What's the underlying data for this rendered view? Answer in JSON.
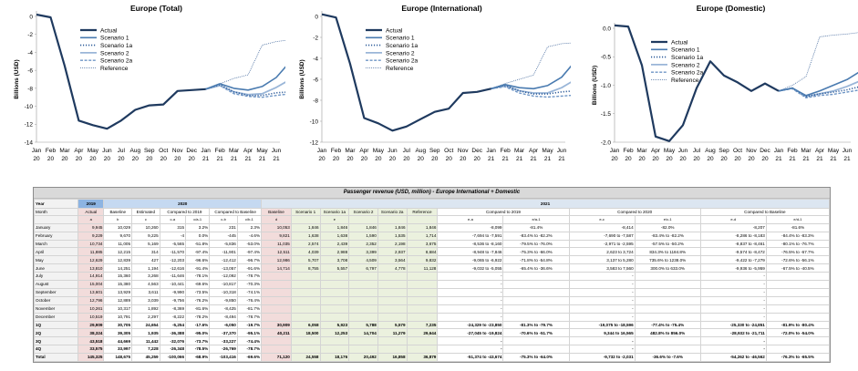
{
  "colors": {
    "actual": "#1f3a5f",
    "s1": "#4a7bb0",
    "s1a": "#2e5c9a",
    "s2": "#9ab6d8",
    "s2a": "#6f96c6",
    "ref": "#4a6ea0",
    "y2019": "#8db4e2",
    "y2020": "#c5d9f1",
    "y2021": "#dce6f1",
    "pink": "#f2dcdb",
    "green": "#ebf1de",
    "shade": "#f2f2f2"
  },
  "chart_data": [
    {
      "type": "line",
      "title": "Europe (Total)",
      "ylabel": "Billions (USD)",
      "ylim": [
        -14,
        0
      ],
      "yticks": [
        0,
        -2,
        -4,
        -6,
        -8,
        -10,
        -12,
        -14
      ],
      "x_tick_top": [
        "Jan",
        "Feb",
        "Mar",
        "Apr",
        "May",
        "Jun",
        "Jul",
        "Aug",
        "Sep",
        "Oct",
        "Nov",
        "Dec",
        "Jan",
        "Feb",
        "Mar",
        "Apr",
        "May",
        "Jun"
      ],
      "x_tick_bottom": [
        "20",
        "20",
        "20",
        "20",
        "20",
        "20",
        "20",
        "20",
        "20",
        "20",
        "20",
        "20",
        "21",
        "21",
        "21",
        "21",
        "21",
        "21"
      ],
      "series": [
        {
          "name": "Actual",
          "style": "actual",
          "start": 0,
          "values": [
            0.2,
            -0.1,
            -5.5,
            -11.6,
            -12.1,
            -12.5,
            -11.6,
            -10.4,
            -9.9,
            -9.8,
            -8.3,
            -8.2,
            -8.1
          ]
        },
        {
          "name": "Scenario 1",
          "style": "s1",
          "start": 12,
          "values": [
            -8.1,
            -7.5,
            -8.0,
            -8.2,
            -7.8,
            -6.8,
            -5.0
          ]
        },
        {
          "name": "Scenario 1a",
          "style": "s1a",
          "start": 12,
          "values": [
            -8.1,
            -7.6,
            -8.4,
            -8.8,
            -8.8,
            -8.5,
            -8.4
          ]
        },
        {
          "name": "Scenario 2",
          "style": "s2",
          "start": 12,
          "values": [
            -8.1,
            -7.7,
            -8.4,
            -8.7,
            -8.6,
            -7.9,
            -7.0
          ]
        },
        {
          "name": "Scenario 2a",
          "style": "s2a",
          "start": 12,
          "values": [
            -8.1,
            -7.7,
            -8.6,
            -8.9,
            -9.0,
            -8.8,
            -8.6
          ]
        },
        {
          "name": "Reference",
          "style": "ref",
          "start": 12,
          "values": [
            -8.1,
            -7.5,
            -6.9,
            -6.5,
            -3.2,
            -2.8,
            -2.6
          ]
        }
      ]
    },
    {
      "type": "line",
      "title": "Europe (International)",
      "ylabel": "Billions (USD)",
      "ylim": [
        -12,
        0
      ],
      "yticks": [
        0,
        -2,
        -4,
        -6,
        -8,
        -10,
        -12
      ],
      "x_tick_top": [
        "Jan",
        "Feb",
        "Mar",
        "Apr",
        "May",
        "Jun",
        "Jul",
        "Aug",
        "Sep",
        "Oct",
        "Nov",
        "Dec",
        "Jan",
        "Feb",
        "Mar",
        "Apr",
        "May",
        "Jun"
      ],
      "x_tick_bottom": [
        "20",
        "20",
        "20",
        "20",
        "20",
        "20",
        "20",
        "20",
        "20",
        "20",
        "20",
        "20",
        "21",
        "21",
        "21",
        "21",
        "21",
        "21"
      ],
      "series": [
        {
          "name": "Actual",
          "style": "actual",
          "start": 0,
          "values": [
            0.2,
            -0.1,
            -4.5,
            -9.7,
            -10.2,
            -10.9,
            -10.5,
            -9.8,
            -9.1,
            -8.8,
            -7.3,
            -7.2,
            -6.9
          ]
        },
        {
          "name": "Scenario 1",
          "style": "s1",
          "start": 12,
          "values": [
            -6.9,
            -6.5,
            -6.8,
            -6.9,
            -6.6,
            -5.8,
            -4.2
          ]
        },
        {
          "name": "Scenario 1a",
          "style": "s1a",
          "start": 12,
          "values": [
            -6.9,
            -6.6,
            -7.1,
            -7.4,
            -7.4,
            -7.2,
            -7.1
          ]
        },
        {
          "name": "Scenario 2",
          "style": "s2",
          "start": 12,
          "values": [
            -6.9,
            -6.6,
            -7.1,
            -7.3,
            -7.3,
            -6.8,
            -6.0
          ]
        },
        {
          "name": "Scenario 2a",
          "style": "s2a",
          "start": 12,
          "values": [
            -6.9,
            -6.7,
            -7.3,
            -7.6,
            -7.7,
            -7.6,
            -7.5
          ]
        },
        {
          "name": "Reference",
          "style": "ref",
          "start": 12,
          "values": [
            -6.9,
            -6.4,
            -6.0,
            -5.6,
            -2.9,
            -2.6,
            -2.5
          ]
        }
      ]
    },
    {
      "type": "line",
      "title": "Europe (Domestic)",
      "ylabel": "Billions (USD)",
      "ylim": [
        -2.0,
        0.0
      ],
      "yticks": [
        0.0,
        -0.5,
        -1.0,
        -1.5,
        -2.0
      ],
      "x_tick_top": [
        "Jan",
        "Feb",
        "Mar",
        "Apr",
        "May",
        "Jun",
        "Jul",
        "Aug",
        "Sep",
        "Oct",
        "Nov",
        "Dec",
        "Jan",
        "Feb",
        "Mar",
        "Apr",
        "May",
        "Jun"
      ],
      "x_tick_bottom": [
        "20",
        "20",
        "20",
        "20",
        "20",
        "20",
        "20",
        "20",
        "20",
        "20",
        "20",
        "20",
        "21",
        "21",
        "21",
        "21",
        "21",
        "21"
      ],
      "series": [
        {
          "name": "Actual",
          "style": "actual",
          "start": 0,
          "values": [
            0.05,
            0.03,
            -0.65,
            -1.9,
            -1.98,
            -1.7,
            -1.05,
            -0.58,
            -0.83,
            -0.95,
            -1.1,
            -0.97,
            -1.1
          ]
        },
        {
          "name": "Scenario 1",
          "style": "s1",
          "start": 12,
          "values": [
            -1.1,
            -1.05,
            -1.18,
            -1.1,
            -1.0,
            -0.9,
            -0.75
          ]
        },
        {
          "name": "Scenario 1a",
          "style": "s1a",
          "start": 12,
          "values": [
            -1.1,
            -1.05,
            -1.2,
            -1.15,
            -1.12,
            -1.08,
            -1.02
          ]
        },
        {
          "name": "Scenario 2",
          "style": "s2",
          "start": 12,
          "values": [
            -1.1,
            -1.05,
            -1.2,
            -1.15,
            -1.1,
            -1.02,
            -0.92
          ]
        },
        {
          "name": "Scenario 2a",
          "style": "s2a",
          "start": 12,
          "values": [
            -1.1,
            -1.06,
            -1.22,
            -1.18,
            -1.16,
            -1.12,
            -1.08
          ]
        },
        {
          "name": "Reference",
          "style": "ref",
          "start": 12,
          "values": [
            -1.1,
            -1.0,
            -0.85,
            -0.15,
            -0.12,
            -0.1,
            -0.07
          ]
        }
      ]
    }
  ],
  "table": {
    "title": "Passenger revenue (USD, million) - Europe International + Domestic",
    "year_label": "Year",
    "years": [
      "2019",
      "2020",
      "2021"
    ],
    "month_label": "Month",
    "headers2": [
      "Actual",
      "Baseline",
      "Estimated",
      "Compared to 2019",
      "",
      "Compared to Baseline",
      "",
      "Baseline",
      "Scenario 1",
      "Scenario 1a",
      "Scenario 2",
      "Scenario 2a",
      "Reference",
      "Compared to 2019",
      "",
      "Compared to 2020",
      "",
      "Compared to Baseline",
      ""
    ],
    "headers3": [
      "a",
      "b",
      "c",
      "c-a",
      "c/a-1",
      "c-b",
      "c/b-1",
      "d",
      "",
      "e",
      "",
      "",
      "",
      "e-a",
      "e/a-1",
      "e-c",
      "e/c-1",
      "e-d",
      "e/d-1"
    ],
    "rows": [
      {
        "label": "January",
        "cells": [
          "9,945",
          "10,029",
          "10,260",
          "315",
          "3.2%",
          "231",
          "2.3%",
          "10,053",
          "1,846",
          "1,846",
          "1,846",
          "1,846",
          "1,846",
          "-8,099",
          "-81.4%",
          "-8,414",
          "-82.0%",
          "-8,207",
          "-81.6%"
        ]
      },
      {
        "label": "February",
        "cells": [
          "9,229",
          "9,670",
          "9,225",
          "-4",
          "0.0%",
          "-445",
          "-4.6%",
          "9,821",
          "1,638",
          "1,638",
          "1,590",
          "1,535",
          "1,714",
          "-7,694 to -7,591",
          "-83.4% to -82.2%",
          "-7,690 to -7,587",
          "-83.4% to -82.2%",
          "-8,286 to -8,183",
          "-84.4% to -83.3%"
        ]
      },
      {
        "label": "March",
        "cells": [
          "10,734",
          "11,005",
          "5,169",
          "-5,565",
          "-51.8%",
          "-5,836",
          "-53.0%",
          "11,035",
          "2,574",
          "2,439",
          "2,352",
          "2,198",
          "3,675",
          "-8,536 to -8,160",
          "-79.5% to -76.0%",
          "-2,971 to -2,595",
          "-57.5% to -50.2%",
          "-8,837 to -8,461",
          "-80.1% to -76.7%"
        ]
      },
      {
        "label": "April",
        "cells": [
          "11,885",
          "12,215",
          "314",
          "-11,570",
          "-97.4%",
          "-11,901",
          "-97.4%",
          "12,511",
          "4,039",
          "2,988",
          "3,399",
          "2,937",
          "8,684",
          "-8,948 to -7,846",
          "-75.3% to -66.0%",
          "2,623 to 3,724",
          "834.3% to 1184.8%",
          "-9,574 to -8,472",
          "-76.5% to -67.7%"
        ]
      },
      {
        "label": "May",
        "cells": [
          "12,629",
          "12,839",
          "427",
          "-12,203",
          "-96.6%",
          "-12,412",
          "-96.7%",
          "12,986",
          "5,707",
          "3,708",
          "4,509",
          "3,564",
          "9,832",
          "-9,065 to -6,922",
          "-71.8% to -54.8%",
          "3,137 to 5,280",
          "735.6% to 1238.0%",
          "-9,422 to -7,279",
          "-72.6% to -56.1%"
        ]
      },
      {
        "label": "June",
        "cells": [
          "13,810",
          "14,251",
          "1,194",
          "-12,616",
          "-91.4%",
          "-13,057",
          "-91.6%",
          "14,714",
          "8,755",
          "5,557",
          "6,797",
          "4,778",
          "11,128",
          "-9,032 to -5,055",
          "-65.4% to -36.6%",
          "3,583 to 7,560",
          "300.0% to 633.0%",
          "-9,936 to -5,959",
          "-67.5% to -40.5%"
        ]
      },
      {
        "label": "July",
        "cells": [
          "14,914",
          "15,360",
          "3,268",
          "-11,646",
          "-78.1%",
          "-12,092",
          "-78.7%",
          "",
          "",
          "",
          "",
          "",
          "",
          "-",
          "",
          "-",
          "",
          "-",
          ""
        ]
      },
      {
        "label": "August",
        "cells": [
          "15,004",
          "15,380",
          "4,563",
          "-10,441",
          "-69.6%",
          "-10,817",
          "-70.3%",
          "",
          "",
          "",
          "",
          "",
          "",
          "-",
          "",
          "-",
          "",
          "-",
          ""
        ]
      },
      {
        "label": "September",
        "cells": [
          "13,601",
          "13,929",
          "3,611",
          "-9,990",
          "-73.5%",
          "-10,318",
          "-74.1%",
          "",
          "",
          "",
          "",
          "",
          "",
          "-",
          "",
          "-",
          "",
          "-",
          ""
        ]
      },
      {
        "label": "October",
        "cells": [
          "12,796",
          "12,889",
          "3,039",
          "-9,756",
          "-76.2%",
          "-9,850",
          "-76.4%",
          "",
          "",
          "",
          "",
          "",
          "",
          "-",
          "",
          "-",
          "",
          "-",
          ""
        ]
      },
      {
        "label": "November",
        "cells": [
          "10,261",
          "10,317",
          "1,892",
          "-8,369",
          "-81.6%",
          "-8,425",
          "-81.7%",
          "",
          "",
          "",
          "",
          "",
          "",
          "-",
          "",
          "-",
          "",
          "-",
          ""
        ]
      },
      {
        "label": "December",
        "cells": [
          "10,519",
          "10,791",
          "2,297",
          "-8,222",
          "-78.2%",
          "-8,494",
          "-78.7%",
          "",
          "",
          "",
          "",
          "",
          "",
          "-",
          "",
          "-",
          "",
          "-",
          ""
        ]
      },
      {
        "label": "1Q",
        "bold": true,
        "cells": [
          "29,909",
          "30,705",
          "24,654",
          "-5,254",
          "-17.6%",
          "-6,050",
          "-19.7%",
          "30,909",
          "6,058",
          "5,923",
          "5,788",
          "5,579",
          "7,235",
          "-24,329 to -23,850",
          "-81.3% to -79.7%",
          "-19,075 to -18,596",
          "-77.4% to -75.4%",
          "-25,330 to -24,851",
          "-81.9% to -80.4%"
        ]
      },
      {
        "label": "2Q",
        "bold": true,
        "cells": [
          "38,324",
          "39,305",
          "1,935",
          "-36,388",
          "-95.0%",
          "-37,370",
          "-95.1%",
          "40,211",
          "18,500",
          "12,253",
          "14,704",
          "11,279",
          "29,644",
          "-27,045 to -19,824",
          "-70.6% to -51.7%",
          "9,344 to 16,565",
          "482.8% to 856.0%",
          "-28,932 to -21,711",
          "-72.0% to -54.0%"
        ]
      },
      {
        "label": "3Q",
        "bold": true,
        "cells": [
          "43,518",
          "44,669",
          "11,442",
          "-32,076",
          "-73.7%",
          "-33,227",
          "-74.4%",
          "",
          "",
          "",
          "",
          "",
          "",
          "-",
          "",
          "-",
          "",
          "-",
          ""
        ]
      },
      {
        "label": "4Q",
        "bold": true,
        "cells": [
          "33,575",
          "33,997",
          "7,228",
          "-26,348",
          "-78.5%",
          "-26,769",
          "-78.7%",
          "",
          "",
          "",
          "",
          "",
          "",
          "-",
          "",
          "-",
          "",
          "-",
          ""
        ]
      },
      {
        "label": "Total",
        "total": true,
        "cells": [
          "145,325",
          "148,675",
          "45,259",
          "-100,066",
          "-68.9%",
          "-103,416",
          "-69.6%",
          "71,120",
          "24,558",
          "18,176",
          "20,492",
          "16,858",
          "36,879",
          "-51,374 to -43,674",
          "-75.3% to -64.0%",
          "-9,732 to -2,031",
          "-36.6% to -7.6%",
          "-54,262 to -46,562",
          "-76.3% to -65.5%"
        ]
      }
    ]
  }
}
